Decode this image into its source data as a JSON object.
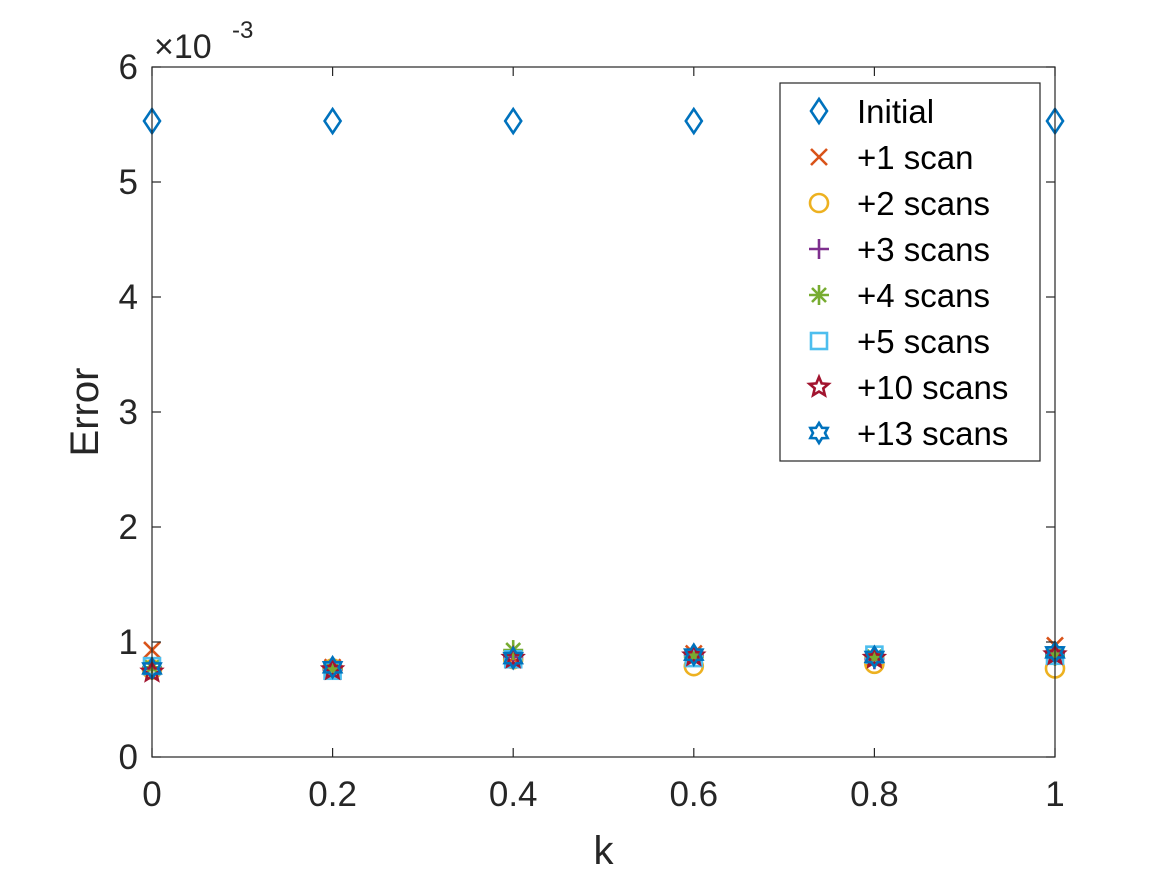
{
  "chart_data": {
    "type": "scatter",
    "xlabel": "k",
    "ylabel": "Error",
    "xlim": [
      0,
      1
    ],
    "ylim": [
      0,
      0.006
    ],
    "x_ticks": [
      0,
      0.2,
      0.4,
      0.6,
      0.8,
      1
    ],
    "x_tick_labels": [
      "0",
      "0.2",
      "0.4",
      "0.6",
      "0.8",
      "1"
    ],
    "y_ticks": [
      0,
      0.001,
      0.002,
      0.003,
      0.004,
      0.005,
      0.006
    ],
    "y_tick_labels": [
      "0",
      "1",
      "2",
      "3",
      "4",
      "5",
      "6"
    ],
    "y_exponent_prefix": "×10",
    "y_exponent": "-3",
    "grid": false,
    "legend_position": "top-right",
    "x": [
      0,
      0.2,
      0.4,
      0.6,
      0.8,
      1
    ],
    "series": [
      {
        "name": "Initial",
        "marker": "diamond",
        "color": "#0072BD",
        "values": [
          0.00553,
          0.00553,
          0.00553,
          0.00553,
          0.00553,
          0.00553
        ]
      },
      {
        "name": "+1 scan",
        "marker": "x",
        "color": "#D95319",
        "values": [
          0.00093,
          0.00078,
          0.00086,
          0.0009,
          0.00086,
          0.00097
        ]
      },
      {
        "name": "+2 scans",
        "marker": "circle",
        "color": "#EDB120",
        "values": [
          0.00076,
          0.00077,
          0.00085,
          0.00079,
          0.00081,
          0.00077
        ]
      },
      {
        "name": "+3 scans",
        "marker": "plus",
        "color": "#7E2F8E",
        "values": [
          0.00077,
          0.00076,
          0.00087,
          0.00089,
          0.00085,
          0.0009
        ]
      },
      {
        "name": "+4 scans",
        "marker": "asterisk",
        "color": "#77AC30",
        "values": [
          0.00078,
          0.00077,
          0.00093,
          0.00087,
          0.00087,
          0.00088
        ]
      },
      {
        "name": "+5 scans",
        "marker": "square",
        "color": "#4DBEEE",
        "values": [
          0.00079,
          0.00075,
          0.00085,
          0.00086,
          0.00089,
          0.00088
        ]
      },
      {
        "name": "+10 scans",
        "marker": "pentagram",
        "color": "#A2142F",
        "values": [
          0.00074,
          0.00076,
          0.00086,
          0.00088,
          0.00086,
          0.00089
        ]
      },
      {
        "name": "+13 scans",
        "marker": "hexagram",
        "color": "#0072BD",
        "values": [
          0.00077,
          0.00078,
          0.00086,
          0.00089,
          0.00087,
          0.00091
        ]
      }
    ]
  }
}
